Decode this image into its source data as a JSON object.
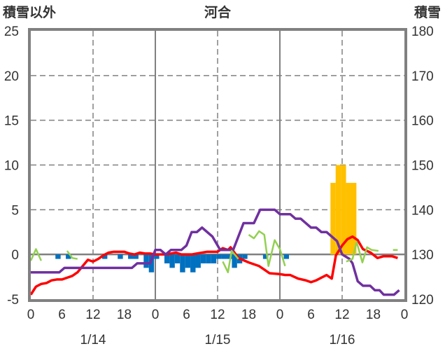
{
  "chart_data": {
    "type": "bar+line",
    "title": "河合",
    "ylabel_left": "積雪以外",
    "ylabel_right": "積雪",
    "ylim_left": [
      -5,
      25
    ],
    "ylim_right": [
      120,
      180
    ],
    "yticks_left": [
      "25",
      "20",
      "15",
      "10",
      "5",
      "0",
      "-5"
    ],
    "yticks_right": [
      "180",
      "170",
      "160",
      "150",
      "140",
      "130",
      "120"
    ],
    "xlim_hours": [
      0,
      72
    ],
    "xticks": [
      "0",
      "6",
      "12",
      "18",
      "0",
      "6",
      "12",
      "18",
      "0",
      "6",
      "12",
      "18",
      "0"
    ],
    "dates": [
      "1/14",
      "1/15",
      "1/16"
    ],
    "colors": {
      "snowfall": "#ffc000",
      "depth_change": "#0070c0",
      "temperature": "#ff0000",
      "snow_depth": "#7030a0",
      "other": "#92d050",
      "frame": "#808080"
    },
    "series": [
      {
        "name": "snowfall",
        "axis": "left",
        "kind": "bar",
        "points": [
          [
            58,
            8
          ],
          [
            59,
            10
          ],
          [
            60,
            10
          ],
          [
            61,
            8
          ],
          [
            62,
            8
          ]
        ]
      },
      {
        "name": "depth_change",
        "axis": "left",
        "kind": "bar",
        "points": [
          [
            5,
            -0.5
          ],
          [
            7,
            -0.5
          ],
          [
            14,
            -0.5
          ],
          [
            17,
            -0.5
          ],
          [
            19,
            -0.5
          ],
          [
            20,
            -0.5
          ],
          [
            22,
            -1.5
          ],
          [
            23,
            -2.0
          ],
          [
            24,
            -0.5
          ],
          [
            26,
            -1.0
          ],
          [
            27,
            -1.5
          ],
          [
            28,
            -1.0
          ],
          [
            29,
            -2.0
          ],
          [
            30,
            -1.5
          ],
          [
            31,
            -2.0
          ],
          [
            32,
            -1.5
          ],
          [
            33,
            -1.0
          ],
          [
            34,
            -1.0
          ],
          [
            35,
            -1.0
          ],
          [
            36,
            -0.5
          ],
          [
            37,
            -0.5
          ],
          [
            38,
            -0.5
          ],
          [
            39,
            -1.5
          ],
          [
            40,
            -1.0
          ],
          [
            41,
            -0.5
          ],
          [
            45,
            -0.5
          ],
          [
            49,
            -0.5
          ]
        ]
      },
      {
        "name": "temperature",
        "axis": "left",
        "kind": "line",
        "segments": [
          [
            [
              0,
              -4.5
            ],
            [
              1,
              -3.6
            ],
            [
              2,
              -3.3
            ],
            [
              3,
              -3.2
            ],
            [
              4,
              -2.9
            ],
            [
              5,
              -2.8
            ],
            [
              6,
              -2.8
            ],
            [
              7,
              -2.6
            ],
            [
              8,
              -2.4
            ],
            [
              9,
              -2.0
            ],
            [
              10,
              -1.3
            ],
            [
              11,
              -0.6
            ],
            [
              12,
              -0.8
            ],
            [
              13,
              -0.5
            ],
            [
              14,
              -0.1
            ],
            [
              15,
              0.2
            ],
            [
              16,
              0.3
            ],
            [
              17,
              0.3
            ],
            [
              18,
              0.3
            ],
            [
              19,
              0.1
            ],
            [
              20,
              0.0
            ],
            [
              21,
              0.2
            ],
            [
              22,
              0.1
            ],
            [
              23,
              0.1
            ],
            [
              24,
              0.0
            ],
            [
              26,
              0.0
            ],
            [
              28,
              0.2
            ],
            [
              29,
              0.0
            ],
            [
              31,
              0.0
            ],
            [
              32,
              0.1
            ],
            [
              34,
              0.3
            ],
            [
              36,
              0.3
            ],
            [
              37,
              0.7
            ],
            [
              38,
              0.5
            ],
            [
              38.5,
              0.8
            ],
            [
              40,
              -0.4
            ],
            [
              42,
              -0.9
            ],
            [
              44,
              -1.3
            ],
            [
              45,
              -1.7
            ],
            [
              46,
              -2.1
            ],
            [
              48,
              -2.2
            ],
            [
              49,
              -2.3
            ],
            [
              50,
              -2.3
            ],
            [
              51.5,
              -2.7
            ],
            [
              53,
              -2.9
            ],
            [
              54,
              -3.1
            ],
            [
              55,
              -2.9
            ],
            [
              56,
              -2.6
            ],
            [
              57,
              -2.3
            ],
            [
              58,
              -2.7
            ],
            [
              58.8,
              -0.1
            ],
            [
              60,
              1.0
            ],
            [
              61,
              1.7
            ],
            [
              62,
              2.0
            ],
            [
              63,
              1.6
            ],
            [
              64,
              0.6
            ],
            [
              65.5,
              0.2
            ],
            [
              66.8,
              -0.4
            ],
            [
              68,
              -0.2
            ],
            [
              69.6,
              -0.2
            ],
            [
              70.7,
              -0.4
            ]
          ]
        ]
      },
      {
        "name": "snow_depth",
        "axis": "right",
        "kind": "line",
        "segments": [
          [
            [
              0,
              126
            ],
            [
              5.5,
              126
            ],
            [
              6.5,
              127
            ],
            [
              19.5,
              127
            ],
            [
              20.5,
              128
            ],
            [
              23,
              128
            ],
            [
              24,
              131
            ],
            [
              25,
              131
            ],
            [
              26,
              130
            ],
            [
              27,
              131
            ],
            [
              29,
              131
            ],
            [
              30,
              132
            ],
            [
              31,
              135
            ],
            [
              32,
              135
            ],
            [
              33,
              136
            ],
            [
              35,
              134
            ],
            [
              36.5,
              131
            ],
            [
              39,
              131
            ],
            [
              41,
              137
            ],
            [
              43,
              137
            ],
            [
              44.2,
              140
            ],
            [
              47,
              140
            ],
            [
              48,
              139
            ],
            [
              50,
              139
            ],
            [
              51,
              138
            ],
            [
              52,
              138
            ],
            [
              54,
              136
            ],
            [
              55,
              136
            ],
            [
              56,
              135
            ],
            [
              57,
              135
            ],
            [
              59,
              133
            ],
            [
              60,
              130
            ],
            [
              61.4,
              129
            ],
            [
              62,
              128
            ],
            [
              63,
              124
            ],
            [
              64,
              123
            ],
            [
              65.4,
              123
            ],
            [
              66.3,
              122
            ],
            [
              67.2,
              122
            ],
            [
              68,
              121
            ],
            [
              70,
              121
            ],
            [
              71,
              122
            ]
          ]
        ]
      },
      {
        "name": "other",
        "axis": "left",
        "kind": "line",
        "segments": [
          [
            [
              0,
              -0.7
            ],
            [
              1,
              0.6
            ],
            [
              2,
              -0.7
            ]
          ],
          [
            [
              7,
              0.4
            ],
            [
              8,
              -0.4
            ],
            [
              9,
              -0.5
            ]
          ],
          [
            [
              37,
              -0.8
            ],
            [
              38,
              -2.0
            ],
            [
              38.7,
              0.4
            ],
            [
              40,
              -0.5
            ]
          ],
          [
            [
              42,
              2.2
            ],
            [
              43,
              1.8
            ],
            [
              44,
              2.6
            ],
            [
              45,
              2.2
            ],
            [
              45.8,
              -1.3
            ],
            [
              47,
              1.6
            ],
            [
              48,
              0.6
            ],
            [
              49,
              -1.3
            ]
          ],
          [
            [
              60.8,
              -0.8
            ],
            [
              62,
              -0.5
            ],
            [
              62.8,
              1.4
            ],
            [
              63.9,
              -0.9
            ],
            [
              64.8,
              0.8
            ],
            [
              65.7,
              0.5
            ],
            [
              67,
              0.4
            ]
          ],
          [
            [
              69.8,
              0.5
            ],
            [
              70.7,
              0.5
            ]
          ]
        ]
      }
    ]
  }
}
